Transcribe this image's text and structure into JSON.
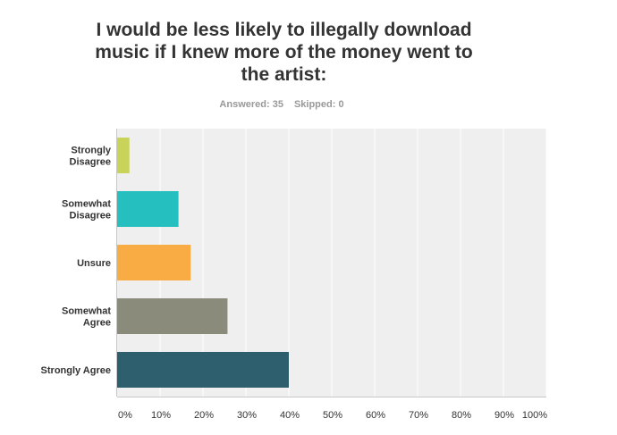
{
  "chart_data": {
    "type": "bar",
    "orientation": "horizontal",
    "title": "I would be less likely to illegally download music if I knew more of the money went to the artist:",
    "answered_label": "Answered: 35",
    "skipped_label": "Skipped: 0",
    "categories": [
      [
        "Strongly",
        "Disagree"
      ],
      [
        "Somewhat",
        "Disagree"
      ],
      [
        "Unsure"
      ],
      [
        "Somewhat",
        "Agree"
      ],
      [
        "Strongly Agree"
      ]
    ],
    "values": [
      2.86,
      14.29,
      17.14,
      25.71,
      40.0
    ],
    "colors": [
      "#c8d35a",
      "#25bfc0",
      "#f9ac43",
      "#8a8b7b",
      "#2d5f6e"
    ],
    "xlim": [
      0,
      100
    ],
    "xticks": [
      "0%",
      "10%",
      "20%",
      "30%",
      "40%",
      "50%",
      "60%",
      "70%",
      "80%",
      "90%",
      "100%"
    ],
    "grid": true
  }
}
